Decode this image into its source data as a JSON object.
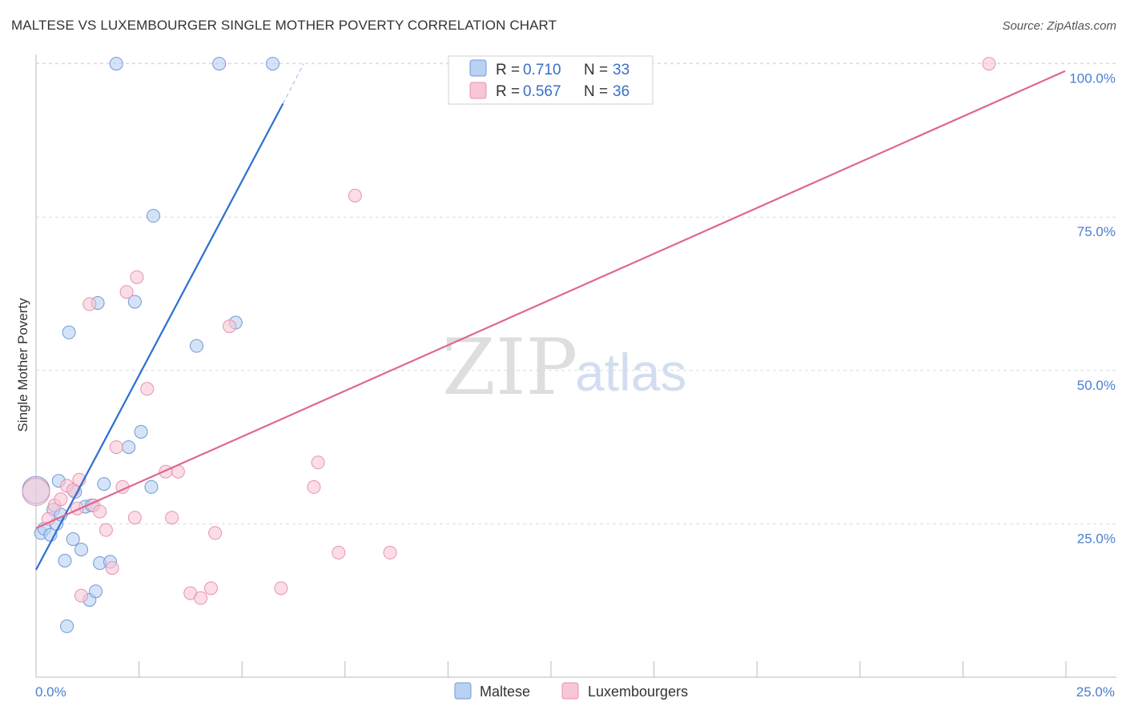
{
  "title": "MALTESE VS LUXEMBOURGER SINGLE MOTHER POVERTY CORRELATION CHART",
  "source": "Source: ZipAtlas.com",
  "watermark": {
    "zip": "ZIP",
    "atlas": "atlas"
  },
  "colors": {
    "maltese_fill": "#b9d1f3",
    "maltese_stroke": "#6f9ad6",
    "maltese_line": "#2b6fd0",
    "lux_fill": "#f8c6d6",
    "lux_stroke": "#e892b0",
    "lux_line": "#e06690",
    "grid": "#dcdcdc",
    "tick_text": "#4a7fd0"
  },
  "legend": {
    "r_label": "R =",
    "n_label": "N =",
    "items": [
      {
        "name": "Maltese",
        "r": "0.710",
        "n": "33"
      },
      {
        "name": "Luxembourgers",
        "r": "0.567",
        "n": "36"
      }
    ]
  },
  "chart_data": {
    "type": "scatter",
    "title": "MALTESE VS LUXEMBOURGER SINGLE MOTHER POVERTY CORRELATION CHART",
    "xlabel": "",
    "ylabel": "Single Mother Poverty",
    "xlim": [
      0,
      25
    ],
    "ylim": [
      0,
      105
    ],
    "x_tick_labels": [
      "0.0%",
      "25.0%"
    ],
    "y_ticks": [
      25,
      50,
      75,
      100
    ],
    "y_tick_labels": [
      "25.0%",
      "50.0%",
      "75.0%",
      "100.0%"
    ],
    "series": [
      {
        "name": "Maltese",
        "trend": {
          "x": [
            0.0,
            6.0
          ],
          "y": [
            17.5,
            93.5
          ],
          "dashed_to": [
            6.5,
            100.0
          ]
        },
        "points": [
          {
            "x": 0.0,
            "y": 30.5,
            "big": true
          },
          {
            "x": 0.12,
            "y": 23.5
          },
          {
            "x": 0.2,
            "y": 24.2
          },
          {
            "x": 0.35,
            "y": 23.2
          },
          {
            "x": 0.42,
            "y": 27.3
          },
          {
            "x": 0.5,
            "y": 25.0
          },
          {
            "x": 0.55,
            "y": 32.0
          },
          {
            "x": 0.6,
            "y": 26.5
          },
          {
            "x": 0.7,
            "y": 19.0
          },
          {
            "x": 0.75,
            "y": 8.3
          },
          {
            "x": 0.8,
            "y": 56.2
          },
          {
            "x": 0.9,
            "y": 22.5
          },
          {
            "x": 0.95,
            "y": 30.2
          },
          {
            "x": 1.1,
            "y": 20.8
          },
          {
            "x": 1.2,
            "y": 27.8
          },
          {
            "x": 1.3,
            "y": 12.6
          },
          {
            "x": 1.35,
            "y": 28.0
          },
          {
            "x": 1.45,
            "y": 14.0
          },
          {
            "x": 1.5,
            "y": 61.0
          },
          {
            "x": 1.55,
            "y": 18.6
          },
          {
            "x": 1.65,
            "y": 31.5
          },
          {
            "x": 1.8,
            "y": 18.8
          },
          {
            "x": 1.95,
            "y": 100.0
          },
          {
            "x": 2.25,
            "y": 37.5
          },
          {
            "x": 2.4,
            "y": 61.2
          },
          {
            "x": 2.55,
            "y": 40.0
          },
          {
            "x": 2.8,
            "y": 31.0
          },
          {
            "x": 2.85,
            "y": 75.2
          },
          {
            "x": 3.9,
            "y": 54.0
          },
          {
            "x": 4.45,
            "y": 100.0
          },
          {
            "x": 4.85,
            "y": 57.8
          },
          {
            "x": 5.75,
            "y": 100.0
          }
        ]
      },
      {
        "name": "Luxembourgers",
        "trend": {
          "x": [
            0.0,
            25.0
          ],
          "y": [
            24.3,
            98.8
          ]
        },
        "points": [
          {
            "x": 0.0,
            "y": 30.2,
            "big": true
          },
          {
            "x": 0.3,
            "y": 25.8
          },
          {
            "x": 0.45,
            "y": 28.0
          },
          {
            "x": 0.6,
            "y": 29.0
          },
          {
            "x": 0.75,
            "y": 31.2
          },
          {
            "x": 0.9,
            "y": 30.5
          },
          {
            "x": 1.0,
            "y": 27.5
          },
          {
            "x": 1.05,
            "y": 32.2
          },
          {
            "x": 1.1,
            "y": 13.3
          },
          {
            "x": 1.3,
            "y": 60.8
          },
          {
            "x": 1.4,
            "y": 28.0
          },
          {
            "x": 1.55,
            "y": 27.0
          },
          {
            "x": 1.7,
            "y": 24.0
          },
          {
            "x": 1.85,
            "y": 17.8
          },
          {
            "x": 1.95,
            "y": 37.5
          },
          {
            "x": 2.1,
            "y": 31.0
          },
          {
            "x": 2.2,
            "y": 62.8
          },
          {
            "x": 2.4,
            "y": 26.0
          },
          {
            "x": 2.45,
            "y": 65.2
          },
          {
            "x": 2.7,
            "y": 47.0
          },
          {
            "x": 3.15,
            "y": 33.5
          },
          {
            "x": 3.3,
            "y": 26.0
          },
          {
            "x": 3.45,
            "y": 33.5
          },
          {
            "x": 3.75,
            "y": 13.7
          },
          {
            "x": 4.0,
            "y": 12.9
          },
          {
            "x": 4.25,
            "y": 14.5
          },
          {
            "x": 4.35,
            "y": 23.5
          },
          {
            "x": 4.7,
            "y": 57.2
          },
          {
            "x": 5.95,
            "y": 14.5
          },
          {
            "x": 6.75,
            "y": 31.0
          },
          {
            "x": 6.85,
            "y": 35.0
          },
          {
            "x": 7.35,
            "y": 20.3
          },
          {
            "x": 7.75,
            "y": 78.5
          },
          {
            "x": 8.6,
            "y": 20.3
          },
          {
            "x": 23.15,
            "y": 100.0
          }
        ]
      }
    ]
  }
}
